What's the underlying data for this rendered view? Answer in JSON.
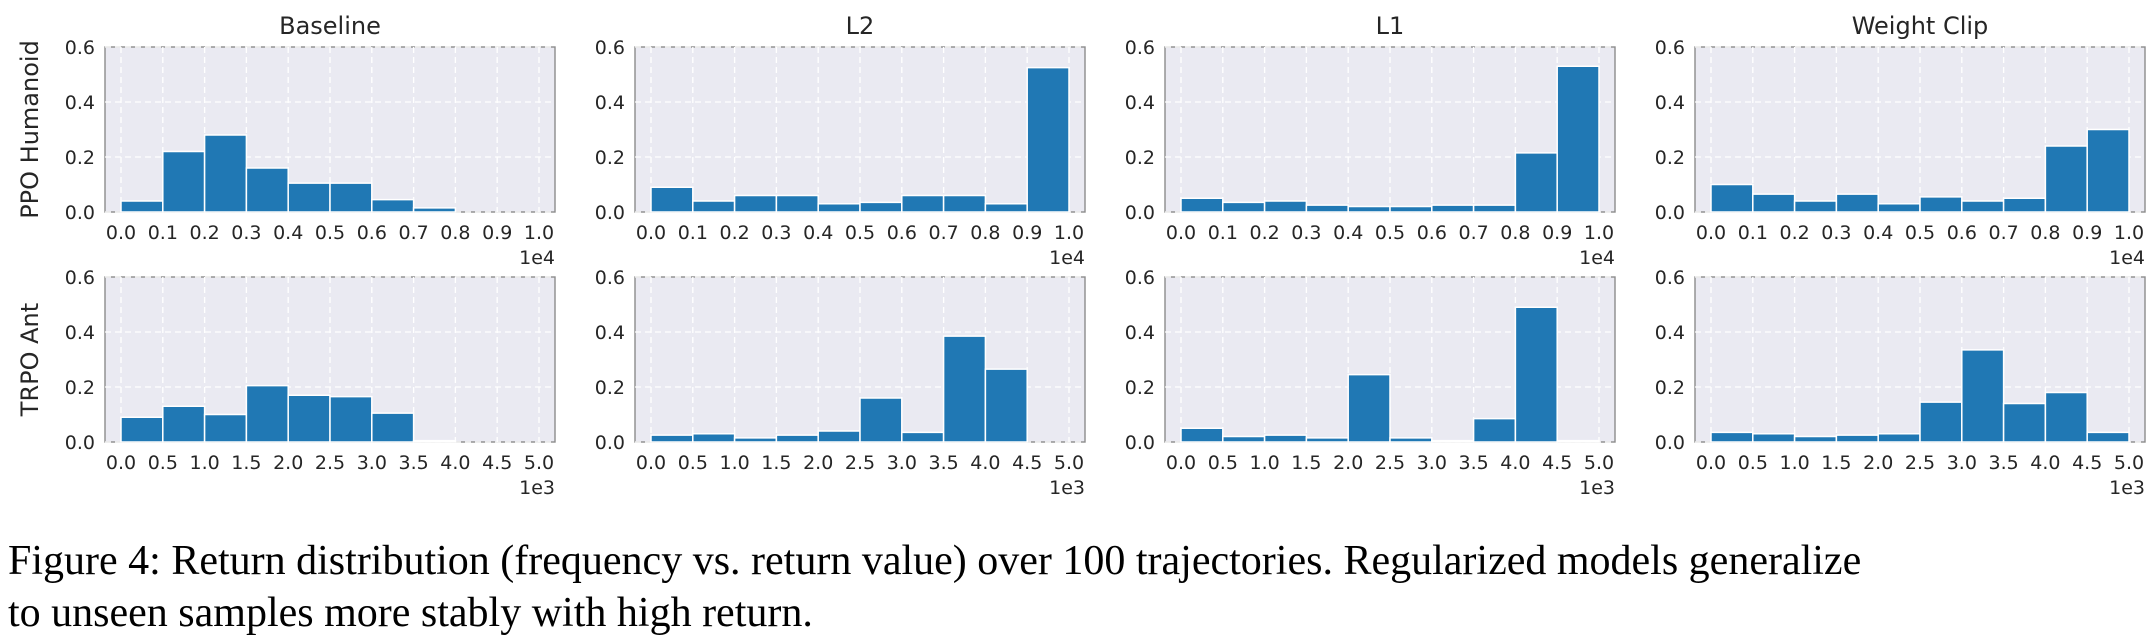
{
  "colors": {
    "bar": "#2078b4",
    "plot_background": "#eaeaf2",
    "grid": "#ffffff"
  },
  "chart_data": [
    {
      "type": "bar",
      "row_label": "PPO Humanoid",
      "title": "Baseline",
      "x_ticks": [
        "0.0",
        "0.1",
        "0.2",
        "0.3",
        "0.4",
        "0.5",
        "0.6",
        "0.7",
        "0.8",
        "0.9",
        "1.0"
      ],
      "y_ticks": [
        "0.0",
        "0.2",
        "0.4",
        "0.6"
      ],
      "x_scale_label": "1e4",
      "xlim": [
        0,
        1.0
      ],
      "ylim": [
        0,
        0.6
      ],
      "bin_edges_start": 0,
      "bin_width": 0.1,
      "values": [
        0.04,
        0.22,
        0.28,
        0.16,
        0.105,
        0.105,
        0.045,
        0.015,
        0.0,
        0.0
      ],
      "grid": true
    },
    {
      "type": "bar",
      "row_label": "PPO Humanoid",
      "title": "L2",
      "x_ticks": [
        "0.0",
        "0.1",
        "0.2",
        "0.3",
        "0.4",
        "0.5",
        "0.6",
        "0.7",
        "0.8",
        "0.9",
        "1.0"
      ],
      "y_ticks": [
        "0.0",
        "0.2",
        "0.4",
        "0.6"
      ],
      "x_scale_label": "1e4",
      "xlim": [
        0,
        1.0
      ],
      "ylim": [
        0,
        0.6
      ],
      "bin_edges_start": 0,
      "bin_width": 0.1,
      "values": [
        0.09,
        0.04,
        0.06,
        0.06,
        0.03,
        0.035,
        0.06,
        0.06,
        0.03,
        0.525
      ],
      "grid": true
    },
    {
      "type": "bar",
      "row_label": "PPO Humanoid",
      "title": "L1",
      "x_ticks": [
        "0.0",
        "0.1",
        "0.2",
        "0.3",
        "0.4",
        "0.5",
        "0.6",
        "0.7",
        "0.8",
        "0.9",
        "1.0"
      ],
      "y_ticks": [
        "0.0",
        "0.2",
        "0.4",
        "0.6"
      ],
      "x_scale_label": "1e4",
      "xlim": [
        0,
        1.0
      ],
      "ylim": [
        0,
        0.6
      ],
      "bin_edges_start": 0,
      "bin_width": 0.1,
      "values": [
        0.05,
        0.035,
        0.04,
        0.025,
        0.02,
        0.02,
        0.025,
        0.025,
        0.215,
        0.53
      ],
      "grid": true
    },
    {
      "type": "bar",
      "row_label": "PPO Humanoid",
      "title": "Weight Clip",
      "x_ticks": [
        "0.0",
        "0.1",
        "0.2",
        "0.3",
        "0.4",
        "0.5",
        "0.6",
        "0.7",
        "0.8",
        "0.9",
        "1.0"
      ],
      "y_ticks": [
        "0.0",
        "0.2",
        "0.4",
        "0.6"
      ],
      "x_scale_label": "1e4",
      "xlim": [
        0,
        1.0
      ],
      "ylim": [
        0,
        0.6
      ],
      "bin_edges_start": 0,
      "bin_width": 0.1,
      "values": [
        0.1,
        0.065,
        0.04,
        0.065,
        0.03,
        0.055,
        0.04,
        0.05,
        0.24,
        0.3
      ],
      "grid": true
    },
    {
      "type": "bar",
      "row_label": "TRPO Ant",
      "title": "",
      "x_ticks": [
        "0.0",
        "0.5",
        "1.0",
        "1.5",
        "2.0",
        "2.5",
        "3.0",
        "3.5",
        "4.0",
        "4.5",
        "5.0"
      ],
      "y_ticks": [
        "0.0",
        "0.2",
        "0.4",
        "0.6"
      ],
      "x_scale_label": "1e3",
      "xlim": [
        0,
        5.0
      ],
      "ylim": [
        0,
        0.6
      ],
      "bin_edges_start": 0,
      "bin_width": 0.5,
      "values": [
        0.09,
        0.13,
        0.1,
        0.205,
        0.17,
        0.165,
        0.105,
        0.005,
        0.0,
        0.0
      ],
      "grid": true
    },
    {
      "type": "bar",
      "row_label": "TRPO Ant",
      "title": "",
      "x_ticks": [
        "0.0",
        "0.5",
        "1.0",
        "1.5",
        "2.0",
        "2.5",
        "3.0",
        "3.5",
        "4.0",
        "4.5",
        "5.0"
      ],
      "y_ticks": [
        "0.0",
        "0.2",
        "0.4",
        "0.6"
      ],
      "x_scale_label": "1e3",
      "xlim": [
        0,
        5.0
      ],
      "ylim": [
        0,
        0.6
      ],
      "bin_edges_start": 0,
      "bin_width": 0.5,
      "values": [
        0.025,
        0.03,
        0.015,
        0.025,
        0.04,
        0.16,
        0.035,
        0.385,
        0.265,
        0.0
      ],
      "grid": true
    },
    {
      "type": "bar",
      "row_label": "TRPO Ant",
      "title": "",
      "x_ticks": [
        "0.0",
        "0.5",
        "1.0",
        "1.5",
        "2.0",
        "2.5",
        "3.0",
        "3.5",
        "4.0",
        "4.5",
        "5.0"
      ],
      "y_ticks": [
        "0.0",
        "0.2",
        "0.4",
        "0.6"
      ],
      "x_scale_label": "1e3",
      "xlim": [
        0,
        5.0
      ],
      "ylim": [
        0,
        0.6
      ],
      "bin_edges_start": 0,
      "bin_width": 0.5,
      "values": [
        0.05,
        0.02,
        0.025,
        0.015,
        0.245,
        0.015,
        0.005,
        0.085,
        0.49,
        0.005
      ],
      "grid": true
    },
    {
      "type": "bar",
      "row_label": "TRPO Ant",
      "title": "",
      "x_ticks": [
        "0.0",
        "0.5",
        "1.0",
        "1.5",
        "2.0",
        "2.5",
        "3.0",
        "3.5",
        "4.0",
        "4.5",
        "5.0"
      ],
      "y_ticks": [
        "0.0",
        "0.2",
        "0.4",
        "0.6"
      ],
      "x_scale_label": "1e3",
      "xlim": [
        0,
        5.0
      ],
      "ylim": [
        0,
        0.6
      ],
      "bin_edges_start": 0,
      "bin_width": 0.5,
      "values": [
        0.035,
        0.03,
        0.02,
        0.025,
        0.03,
        0.145,
        0.335,
        0.14,
        0.18,
        0.035
      ],
      "grid": true
    }
  ],
  "caption": {
    "line1": "Figure 4: Return distribution (frequency vs. return value) over 100 trajectories. Regularized models generalize",
    "line2": "to unseen samples more stably with high return."
  }
}
